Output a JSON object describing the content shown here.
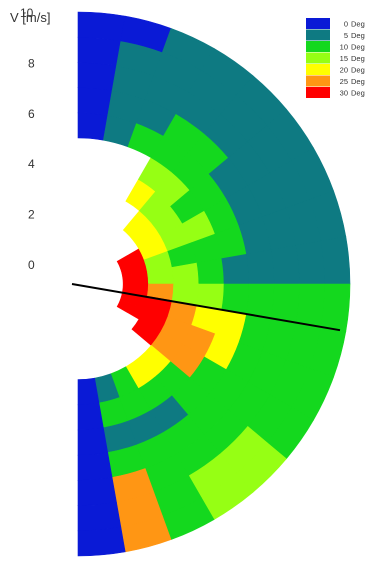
{
  "chart_data": {
    "type": "heatmap",
    "subtype": "polar-half",
    "ylabel": "V [m/s]",
    "radial_ticks": [
      {
        "label": "10",
        "value": 10
      },
      {
        "label": "8",
        "value": 8
      },
      {
        "label": "6",
        "value": 6
      },
      {
        "label": "4",
        "value": 4
      },
      {
        "label": "2",
        "value": 2
      },
      {
        "label": "0",
        "value": 0
      }
    ],
    "r_range": [
      0,
      10
    ],
    "angle_range_deg": [
      0,
      180
    ],
    "angle_step_deg": 10,
    "reference_line_angle_deg": 100,
    "legend": [
      {
        "label": "0",
        "unit": "Deg",
        "value": 0,
        "color": "#0a1ad6"
      },
      {
        "label": "5",
        "unit": "Deg",
        "value": 5,
        "color": "#0e7a82"
      },
      {
        "label": "10",
        "unit": "Deg",
        "value": 10,
        "color": "#14d81e"
      },
      {
        "label": "15",
        "unit": "Deg",
        "value": 15,
        "color": "#96ff14"
      },
      {
        "label": "20",
        "unit": "Deg",
        "value": 20,
        "color": "#ffff00"
      },
      {
        "label": "25",
        "unit": "Deg",
        "value": 25,
        "color": "#ff9614"
      },
      {
        "label": "30",
        "unit": "Deg",
        "value": 30,
        "color": "#ff0000"
      }
    ],
    "cells": [
      {
        "angle": [
          0,
          10
        ],
        "values": [
          null,
          null,
          null,
          null,
          null,
          0,
          0,
          0,
          0,
          0
        ]
      },
      {
        "angle": [
          10,
          20
        ],
        "values": [
          null,
          null,
          null,
          null,
          null,
          5,
          5,
          5,
          5,
          0
        ]
      },
      {
        "angle": [
          20,
          30
        ],
        "values": [
          null,
          null,
          null,
          null,
          null,
          10,
          5,
          5,
          5,
          5
        ]
      },
      {
        "angle": [
          30,
          40
        ],
        "values": [
          null,
          null,
          null,
          20,
          15,
          10,
          10,
          5,
          5,
          5
        ]
      },
      {
        "angle": [
          40,
          50
        ],
        "values": [
          null,
          null,
          20,
          15,
          15,
          10,
          10,
          5,
          5,
          5
        ]
      },
      {
        "angle": [
          50,
          60
        ],
        "values": [
          null,
          null,
          20,
          15,
          10,
          10,
          5,
          5,
          5,
          5
        ]
      },
      {
        "angle": [
          60,
          70
        ],
        "values": [
          null,
          30,
          20,
          15,
          15,
          10,
          5,
          5,
          5,
          5
        ]
      },
      {
        "angle": [
          70,
          80
        ],
        "values": [
          null,
          30,
          15,
          10,
          10,
          10,
          5,
          5,
          5,
          5
        ]
      },
      {
        "angle": [
          80,
          90
        ],
        "values": [
          null,
          30,
          15,
          15,
          10,
          5,
          5,
          5,
          5,
          5
        ]
      },
      {
        "angle": [
          90,
          100
        ],
        "values": [
          null,
          30,
          25,
          15,
          15,
          10,
          10,
          10,
          10,
          10
        ]
      },
      {
        "angle": [
          100,
          110
        ],
        "values": [
          null,
          30,
          30,
          25,
          20,
          20,
          10,
          10,
          10,
          10
        ]
      },
      {
        "angle": [
          110,
          120
        ],
        "values": [
          null,
          30,
          30,
          25,
          25,
          20,
          10,
          10,
          10,
          10
        ]
      },
      {
        "angle": [
          120,
          130
        ],
        "values": [
          null,
          null,
          30,
          25,
          25,
          10,
          10,
          10,
          10,
          10
        ]
      },
      {
        "angle": [
          130,
          140
        ],
        "values": [
          null,
          null,
          null,
          20,
          10,
          10,
          10,
          10,
          15,
          15
        ]
      },
      {
        "angle": [
          140,
          150
        ],
        "values": [
          null,
          null,
          null,
          20,
          10,
          5,
          10,
          10,
          15,
          15
        ]
      },
      {
        "angle": [
          150,
          160
        ],
        "values": [
          null,
          null,
          null,
          10,
          10,
          5,
          10,
          10,
          10,
          10
        ]
      },
      {
        "angle": [
          160,
          170
        ],
        "values": [
          null,
          null,
          null,
          5,
          10,
          5,
          10,
          25,
          25,
          25
        ]
      },
      {
        "angle": [
          170,
          180
        ],
        "values": [
          null,
          null,
          null,
          0,
          0,
          0,
          0,
          0,
          0,
          0
        ]
      }
    ]
  }
}
